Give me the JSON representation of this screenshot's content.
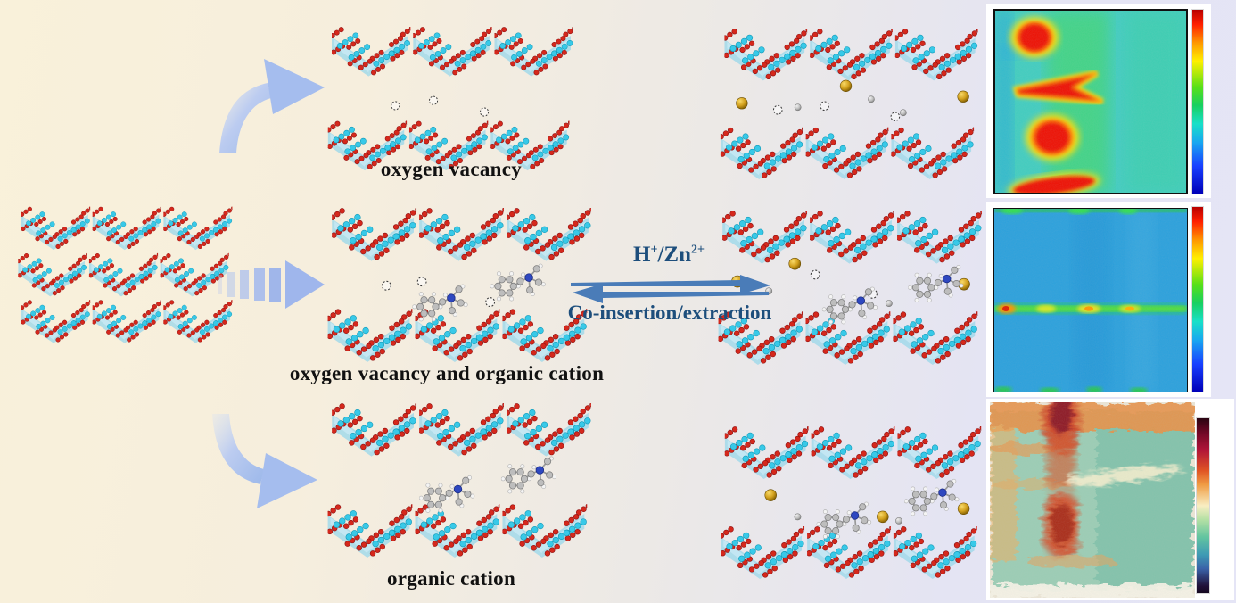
{
  "title": "layered oxide H+/Zn2+ co-insertion schematic",
  "labels": {
    "oxygen_vacancy": "oxygen vacancy",
    "oxygen_vacancy_and_organic_cation": "oxygen vacancy and organic cation",
    "organic_cation": "organic cation"
  },
  "reaction": {
    "cation1": "H",
    "cation1_charge": "+",
    "separator": "/",
    "cation2": "Zn",
    "cation2_charge": "2+",
    "reverse_label": "Co-insertion/extraction"
  },
  "colors": {
    "label_text": "#111111",
    "reaction_text": "#1d4e7c",
    "soft_arrow_fill": "#aac2ee",
    "equilibrium_arrow": "#4a7cb8",
    "layer_fill": "#a8dcec",
    "oxygen_atom": "#d5281c",
    "metal_atom": "#38c9e8",
    "zinc_ion": "#d8a21e",
    "proton": "#bbbbbb"
  },
  "structures": [
    {
      "id": "pristine",
      "species": [
        "layered-oxide"
      ]
    },
    {
      "id": "oxygen-vacancy",
      "species": [
        "layered-oxide",
        "oxygen-vacancy"
      ]
    },
    {
      "id": "oxygen-vacancy-organic-cation",
      "species": [
        "layered-oxide",
        "oxygen-vacancy",
        "organic-cation"
      ]
    },
    {
      "id": "organic-cation",
      "species": [
        "layered-oxide",
        "organic-cation"
      ]
    },
    {
      "id": "oxygen-vacancy-inserted",
      "species": [
        "layered-oxide",
        "oxygen-vacancy",
        "zinc-ion",
        "proton"
      ]
    },
    {
      "id": "oxygen-vacancy-organic-cation-inserted",
      "species": [
        "layered-oxide",
        "oxygen-vacancy",
        "organic-cation",
        "zinc-ion",
        "proton"
      ]
    },
    {
      "id": "organic-cation-inserted",
      "species": [
        "layered-oxide",
        "organic-cation",
        "zinc-ion",
        "proton"
      ]
    }
  ],
  "figures": [
    {
      "id": "map-top",
      "type": "heatmap",
      "colormap": "jet"
    },
    {
      "id": "map-middle",
      "type": "heatmap",
      "colormap": "jet"
    },
    {
      "id": "map-bottom",
      "type": "3d-surface",
      "colormap": "dark-spectral"
    }
  ]
}
